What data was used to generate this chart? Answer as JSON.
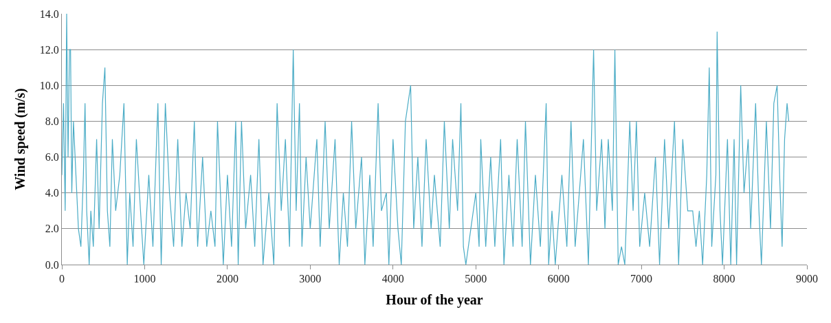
{
  "chart_data": {
    "type": "line",
    "xlabel": "Hour of the year",
    "ylabel": "Wind speed (m/s)",
    "x": [
      0,
      20,
      40,
      58,
      75,
      92,
      105,
      120,
      140,
      170,
      200,
      230,
      260,
      280,
      300,
      330,
      350,
      380,
      420,
      450,
      490,
      520,
      550,
      580,
      610,
      650,
      700,
      750,
      790,
      820,
      860,
      900,
      950,
      990,
      1050,
      1100,
      1160,
      1200,
      1250,
      1300,
      1350,
      1400,
      1450,
      1500,
      1550,
      1600,
      1640,
      1700,
      1750,
      1800,
      1850,
      1880,
      1950,
      2000,
      2050,
      2100,
      2130,
      2170,
      2220,
      2280,
      2330,
      2380,
      2430,
      2500,
      2560,
      2600,
      2650,
      2700,
      2750,
      2795,
      2830,
      2870,
      2900,
      2950,
      3000,
      3080,
      3120,
      3180,
      3230,
      3300,
      3350,
      3400,
      3450,
      3500,
      3550,
      3620,
      3660,
      3720,
      3760,
      3820,
      3860,
      3920,
      3950,
      4000,
      4060,
      4100,
      4150,
      4213,
      4250,
      4300,
      4350,
      4400,
      4460,
      4500,
      4570,
      4620,
      4680,
      4720,
      4780,
      4820,
      4850,
      4880,
      4940,
      5000,
      5040,
      5060,
      5120,
      5180,
      5230,
      5300,
      5340,
      5400,
      5450,
      5500,
      5560,
      5600,
      5660,
      5720,
      5780,
      5850,
      5880,
      5920,
      5960,
      6040,
      6100,
      6150,
      6200,
      6300,
      6360,
      6423,
      6460,
      6520,
      6560,
      6600,
      6650,
      6680,
      6720,
      6760,
      6800,
      6860,
      6900,
      6940,
      6980,
      7040,
      7100,
      7170,
      7220,
      7280,
      7330,
      7400,
      7450,
      7500,
      7560,
      7620,
      7660,
      7700,
      7740,
      7790,
      7820,
      7850,
      7900,
      7915,
      7950,
      7980,
      8040,
      8080,
      8120,
      8150,
      8200,
      8240,
      8290,
      8320,
      8380,
      8420,
      8450,
      8510,
      8560,
      8600,
      8640,
      8670,
      8700,
      8730,
      8760,
      8780
    ],
    "series": [
      {
        "color": "#4bacc6",
        "values": [
          5,
          9,
          3,
          14,
          6,
          12,
          12,
          4,
          8,
          5,
          2,
          1,
          5,
          9,
          3,
          0,
          3,
          1,
          7,
          2,
          9,
          11,
          3,
          1,
          7,
          3,
          5,
          9,
          0,
          4,
          1,
          7,
          3,
          0,
          5,
          1,
          9,
          0,
          9,
          4,
          1,
          7,
          1,
          4,
          2,
          8,
          1,
          6,
          1,
          3,
          1,
          8,
          0,
          5,
          1,
          8,
          0,
          8,
          2,
          5,
          1,
          7,
          0,
          4,
          0,
          9,
          3,
          7,
          1,
          12,
          3,
          9,
          1,
          6,
          2,
          7,
          1,
          8,
          2,
          7,
          0,
          4,
          1,
          8,
          2,
          6,
          0,
          5,
          1,
          9,
          3,
          4,
          0,
          7,
          2,
          0,
          8,
          10,
          2,
          6,
          1,
          7,
          2,
          5,
          1,
          8,
          2,
          7,
          3,
          9,
          1,
          0,
          2,
          4,
          1,
          7,
          1,
          6,
          1,
          7,
          0,
          5,
          1,
          7,
          1,
          8,
          0,
          5,
          1,
          9,
          0,
          3,
          0,
          5,
          1,
          8,
          1,
          7,
          0,
          12,
          3,
          7,
          2,
          7,
          3,
          12,
          0,
          1,
          0,
          8,
          3,
          8,
          1,
          4,
          1,
          6,
          0,
          7,
          2,
          8,
          0,
          7,
          3,
          3,
          1,
          3,
          0,
          5,
          11,
          1,
          5,
          13,
          3,
          0,
          7,
          0,
          7,
          0,
          10,
          4,
          7,
          2,
          9,
          3,
          0,
          8,
          2,
          9,
          10,
          5,
          1,
          7,
          9,
          8
        ]
      }
    ],
    "xlim": [
      0,
      9000
    ],
    "xticks": [
      0,
      1000,
      2000,
      3000,
      4000,
      5000,
      6000,
      7000,
      8000,
      9000
    ],
    "ylim": [
      0,
      14
    ],
    "yticks": [
      {
        "value": 0,
        "label": "0.0"
      },
      {
        "value": 2,
        "label": "2.0"
      },
      {
        "value": 4,
        "label": "4.0"
      },
      {
        "value": 6,
        "label": "6.0"
      },
      {
        "value": 8,
        "label": "8.0"
      },
      {
        "value": 10,
        "label": "10.0"
      },
      {
        "value": 12,
        "label": "12.0"
      },
      {
        "value": 14,
        "label": "14.0"
      }
    ],
    "grid": "y",
    "marker": "none",
    "line_style": "solid"
  }
}
